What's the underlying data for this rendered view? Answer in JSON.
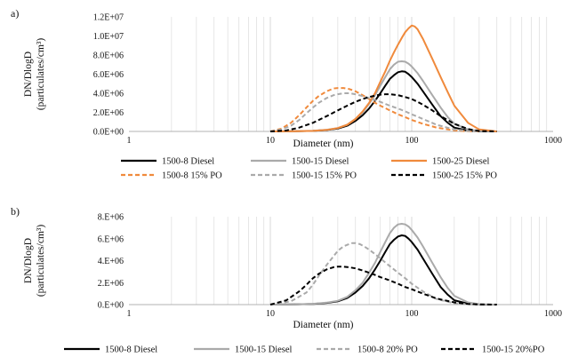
{
  "chart_data": [
    {
      "type": "line",
      "panel_label": "a)",
      "xlabel": "Diameter (nm)",
      "ylabel": [
        "DN/DlogD",
        "(particulates/cm³)"
      ],
      "xscale": "log",
      "xlim": [
        1,
        1000
      ],
      "ylim": [
        0,
        12000000
      ],
      "x_ticks": [
        1,
        10,
        100,
        1000
      ],
      "x_tick_labels": [
        "1",
        "10",
        "100",
        "1000"
      ],
      "y_ticks": [
        0,
        2000000,
        4000000,
        6000000,
        8000000,
        10000000,
        12000000
      ],
      "y_tick_labels": [
        "0.0E+00",
        "2.0E+06",
        "4.0E+06",
        "6.0E+06",
        "8.0E+06",
        "1.0E+07",
        "1.2E+07"
      ],
      "grid": "vertical minor log gridlines",
      "legend_position": "bottom",
      "series": [
        {
          "name": "1500-8 Diesel",
          "color": "#000000",
          "style": "solid",
          "x": [
            10,
            15,
            20,
            25,
            30,
            35,
            40,
            45,
            50,
            55,
            60,
            65,
            70,
            75,
            80,
            85,
            90,
            95,
            100,
            110,
            120,
            140,
            160,
            180,
            200,
            250,
            300,
            400
          ],
          "y": [
            0,
            20000,
            60000,
            150000,
            300000,
            600000,
            1100000,
            1700000,
            2400000,
            3200000,
            4000000,
            4800000,
            5500000,
            5900000,
            6200000,
            6300000,
            6250000,
            6000000,
            5700000,
            5000000,
            4200000,
            2800000,
            1600000,
            900000,
            400000,
            80000,
            10000,
            0
          ]
        },
        {
          "name": "1500-15 Diesel",
          "color": "#aaaaaa",
          "style": "solid",
          "x": [
            10,
            15,
            20,
            25,
            30,
            35,
            40,
            45,
            50,
            55,
            60,
            65,
            70,
            75,
            80,
            85,
            90,
            95,
            100,
            110,
            120,
            140,
            160,
            180,
            200,
            250,
            300,
            400
          ],
          "y": [
            0,
            20000,
            70000,
            180000,
            350000,
            700000,
            1300000,
            2000000,
            2900000,
            3800000,
            4800000,
            5700000,
            6500000,
            7000000,
            7300000,
            7350000,
            7300000,
            7100000,
            6800000,
            6100000,
            5300000,
            3800000,
            2500000,
            1500000,
            800000,
            200000,
            40000,
            0
          ]
        },
        {
          "name": "1500-25 Diesel",
          "color": "#f08a3c",
          "style": "solid",
          "x": [
            10,
            15,
            20,
            25,
            30,
            35,
            40,
            45,
            50,
            55,
            60,
            65,
            70,
            75,
            80,
            85,
            90,
            95,
            100,
            105,
            110,
            120,
            140,
            160,
            180,
            200,
            250,
            300,
            400
          ],
          "y": [
            0,
            20000,
            60000,
            160000,
            350000,
            700000,
            1300000,
            2100000,
            3000000,
            4000000,
            5200000,
            6300000,
            7400000,
            8300000,
            9100000,
            9800000,
            10400000,
            10800000,
            11100000,
            11000000,
            10700000,
            9700000,
            7600000,
            5700000,
            4100000,
            2700000,
            900000,
            200000,
            0
          ]
        },
        {
          "name": "1500-8 15% PO",
          "color": "#f08a3c",
          "style": "dashed",
          "x": [
            10,
            12,
            14,
            16,
            18,
            20,
            22,
            25,
            28,
            30,
            33,
            36,
            40,
            45,
            50,
            55,
            60,
            70,
            80,
            90,
            100,
            120,
            150,
            200,
            250,
            300
          ],
          "y": [
            0,
            300000,
            900000,
            1700000,
            2500000,
            3200000,
            3700000,
            4200000,
            4500000,
            4550000,
            4550000,
            4450000,
            4200000,
            3800000,
            3400000,
            3000000,
            2700000,
            2200000,
            1800000,
            1500000,
            1200000,
            800000,
            400000,
            100000,
            20000,
            0
          ]
        },
        {
          "name": "1500-15 15% PO",
          "color": "#aaaaaa",
          "style": "dashed",
          "x": [
            10,
            12,
            14,
            16,
            18,
            20,
            22,
            25,
            28,
            30,
            33,
            36,
            40,
            45,
            50,
            55,
            60,
            70,
            80,
            90,
            100,
            120,
            150,
            200,
            250,
            300
          ],
          "y": [
            0,
            200000,
            600000,
            1200000,
            1900000,
            2500000,
            3000000,
            3500000,
            3800000,
            3900000,
            4000000,
            4000000,
            3900000,
            3700000,
            3500000,
            3300000,
            3100000,
            2700000,
            2400000,
            2100000,
            1800000,
            1300000,
            700000,
            200000,
            50000,
            0
          ]
        },
        {
          "name": "1500-25 15% PO",
          "color": "#000000",
          "style": "dashed",
          "x": [
            10,
            13,
            16,
            20,
            25,
            30,
            35,
            40,
            45,
            50,
            55,
            60,
            65,
            70,
            80,
            90,
            100,
            110,
            120,
            140,
            160,
            200,
            250,
            300,
            400
          ],
          "y": [
            0,
            100000,
            400000,
            900000,
            1600000,
            2200000,
            2700000,
            3100000,
            3400000,
            3600000,
            3750000,
            3850000,
            3900000,
            3900000,
            3800000,
            3600000,
            3400000,
            3100000,
            2800000,
            2200000,
            1600000,
            800000,
            250000,
            50000,
            0
          ]
        }
      ]
    },
    {
      "type": "line",
      "panel_label": "b)",
      "xlabel": "Diameter (nm)",
      "ylabel": [
        "DN/DlogD",
        "(particulates/cm³)"
      ],
      "xscale": "log",
      "xlim": [
        1,
        1000
      ],
      "ylim": [
        0,
        8000000
      ],
      "x_ticks": [
        1,
        10,
        100,
        1000
      ],
      "x_tick_labels": [
        "1",
        "10",
        "100",
        "1000"
      ],
      "y_ticks": [
        0,
        2000000,
        4000000,
        6000000,
        8000000
      ],
      "y_tick_labels": [
        "0.E+00",
        "2.E+06",
        "4.E+06",
        "6.E+06",
        "8.E+06"
      ],
      "grid": "vertical minor log gridlines",
      "legend_position": "bottom",
      "series": [
        {
          "name": "1500-8 Diesel",
          "color": "#000000",
          "style": "solid",
          "x": [
            10,
            15,
            20,
            25,
            30,
            35,
            40,
            45,
            50,
            55,
            60,
            65,
            70,
            75,
            80,
            85,
            90,
            95,
            100,
            110,
            120,
            140,
            160,
            180,
            200,
            250,
            300,
            400
          ],
          "y": [
            0,
            20000,
            60000,
            150000,
            300000,
            600000,
            1100000,
            1700000,
            2400000,
            3200000,
            4000000,
            4800000,
            5500000,
            5900000,
            6200000,
            6300000,
            6250000,
            6000000,
            5700000,
            5000000,
            4200000,
            2800000,
            1600000,
            900000,
            400000,
            80000,
            10000,
            0
          ]
        },
        {
          "name": "1500-15 Diesel",
          "color": "#aaaaaa",
          "style": "solid",
          "x": [
            10,
            15,
            20,
            25,
            30,
            35,
            40,
            45,
            50,
            55,
            60,
            65,
            70,
            75,
            80,
            85,
            90,
            95,
            100,
            110,
            120,
            140,
            160,
            180,
            200,
            250,
            300,
            400
          ],
          "y": [
            0,
            20000,
            70000,
            180000,
            350000,
            700000,
            1300000,
            2000000,
            2900000,
            3800000,
            4800000,
            5700000,
            6500000,
            7000000,
            7300000,
            7350000,
            7300000,
            7100000,
            6800000,
            6100000,
            5300000,
            3800000,
            2500000,
            1500000,
            800000,
            200000,
            40000,
            0
          ]
        },
        {
          "name": "1500-8 20% PO",
          "color": "#aaaaaa",
          "style": "dashed",
          "x": [
            10,
            14,
            18,
            20,
            22,
            25,
            28,
            30,
            33,
            36,
            38,
            40,
            43,
            46,
            50,
            55,
            60,
            70,
            80,
            90,
            100,
            120,
            150,
            200,
            250,
            300
          ],
          "y": [
            0,
            300000,
            1100000,
            1800000,
            2600000,
            3600000,
            4400000,
            4900000,
            5300000,
            5500000,
            5600000,
            5600000,
            5500000,
            5300000,
            5000000,
            4600000,
            4200000,
            3500000,
            2900000,
            2400000,
            1900000,
            1200000,
            500000,
            120000,
            30000,
            0
          ]
        },
        {
          "name": "1500-15 20%PO",
          "color": "#000000",
          "style": "dashed",
          "x": [
            10,
            13,
            16,
            18,
            20,
            22,
            25,
            28,
            30,
            33,
            36,
            40,
            45,
            50,
            55,
            60,
            70,
            80,
            90,
            100,
            120,
            150,
            200,
            250,
            300,
            400
          ],
          "y": [
            0,
            400000,
            1200000,
            1800000,
            2400000,
            2800000,
            3200000,
            3400000,
            3450000,
            3450000,
            3400000,
            3300000,
            3100000,
            2900000,
            2700000,
            2500000,
            2200000,
            1900000,
            1600000,
            1400000,
            1000000,
            550000,
            200000,
            60000,
            15000,
            0
          ]
        }
      ]
    }
  ]
}
